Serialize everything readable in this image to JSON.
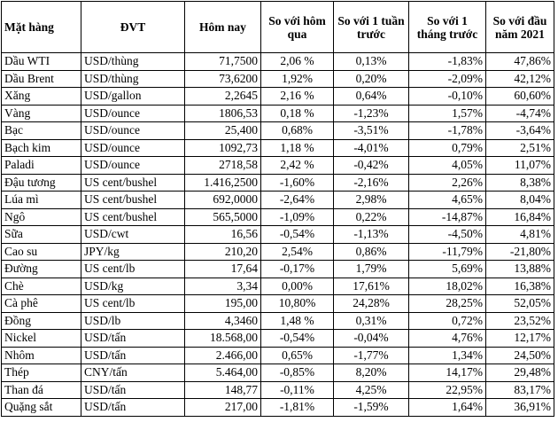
{
  "table": {
    "headers": [
      "Mặt hàng",
      "ĐVT",
      "Hôm nay",
      "So với hôm qua",
      "So với 1 tuần trước",
      "So với 1 tháng trước",
      "So với đầu năm 2021"
    ],
    "rows": [
      [
        "Dầu WTI",
        "USD/thùng",
        "71,7500",
        "2,06 %",
        "0,13%",
        "-1,83%",
        "47,86%"
      ],
      [
        "Dầu Brent",
        "USD/thùng",
        "73,6200",
        "1,92%",
        "0,20%",
        "-2,09%",
        "42,12%"
      ],
      [
        "Xăng",
        "USD/gallon",
        "2,2645",
        "2,16 %",
        "0,64%",
        "-0,10%",
        "60,60%"
      ],
      [
        "Vàng",
        "USD/ounce",
        "1806,53",
        "0,18 %",
        "-1,23%",
        "1,57%",
        "-4,74%"
      ],
      [
        "Bạc",
        "USD/ounce",
        "25,400",
        "0,68%",
        "-3,51%",
        "-1,78%",
        "-3,64%"
      ],
      [
        "Bạch kim",
        "USD/ounce",
        "1092,73",
        "1,18 %",
        "-4,01%",
        "0,79%",
        "2,51%"
      ],
      [
        "Paladi",
        "USD/ounce",
        "2718,58",
        "2,42 %",
        "-0,42%",
        "4,05%",
        "11,07%"
      ],
      [
        "Đậu tương",
        "US cent/bushel",
        "1.416,2500",
        "-1,60%",
        "-2,16%",
        "2,26%",
        "8,38%"
      ],
      [
        "Lúa mì",
        "US cent/bushel",
        "692,0000",
        "-2,64%",
        "2,98%",
        "4,65%",
        "8,04%"
      ],
      [
        "Ngô",
        "US cent/bushel",
        "565,5000",
        "-1,09%",
        "0,22%",
        "-14,87%",
        "16,84%"
      ],
      [
        "Sữa",
        "USD/cwt",
        "16,56",
        "-0,54%",
        "-1,13%",
        "-4,50%",
        "4,81%"
      ],
      [
        "Cao su",
        "JPY/kg",
        "210,20",
        "2,54%",
        "0,86%",
        "-11,79%",
        "-21,80%"
      ],
      [
        "Đường",
        "US cent/lb",
        "17,64",
        "-0,17%",
        "1,79%",
        "5,69%",
        "13,88%"
      ],
      [
        "Chè",
        "USD/kg",
        "3,34",
        "0,00%",
        "17,61%",
        "18,02%",
        "16,38%"
      ],
      [
        "Cà phê",
        "US cent/lb",
        "195,00",
        "10,80%",
        "24,28%",
        "28,25%",
        "52,05%"
      ],
      [
        "Đồng",
        "USD/lb",
        "4,3460",
        "1,48 %",
        "0,31%",
        "0,72%",
        "23,52%"
      ],
      [
        "Nickel",
        "USD/tấn",
        "18.568,00",
        "-0,54%",
        "-0,04%",
        "4,76%",
        "12,17%"
      ],
      [
        "Nhôm",
        "USD/tấn",
        "2.466,00",
        "0,65%",
        "-1,77%",
        "1,34%",
        "24,50%"
      ],
      [
        "Thép",
        "CNY/tấn",
        "5.464,00",
        "-0,85%",
        "8,20%",
        "14,17%",
        "29,48%"
      ],
      [
        "Than đá",
        "USD/tấn",
        "148,77",
        "-0,11%",
        "4,25%",
        "22,95%",
        "83,17%"
      ],
      [
        "Quặng sắt",
        "USD/tấn",
        "217,00",
        "-1,81%",
        "-1,59%",
        "1,64%",
        "36,91%"
      ]
    ]
  }
}
